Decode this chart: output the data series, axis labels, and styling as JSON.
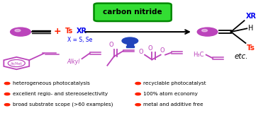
{
  "bg_color": "#ffffff",
  "green_box_text": "carbon nitride",
  "green_box_color": "#33dd33",
  "green_box_edge": "#008800",
  "sphere_color": "#bb44bb",
  "ts_color": "#ff2200",
  "xr_color": "#0000ee",
  "bullet_color": "#ff2200",
  "text_color": "#000000",
  "plus_color": "#ff2200",
  "bulb_color": "#2244bb",
  "bullet_points_left": [
    "heterogeneous photocatalysis",
    "excellent regio- and stereoselectivity",
    "broad substrate scope (>60 examples)"
  ],
  "bullet_points_right": [
    "recyclable photocatalyst",
    "100% atom economy",
    "metal and additive free"
  ]
}
